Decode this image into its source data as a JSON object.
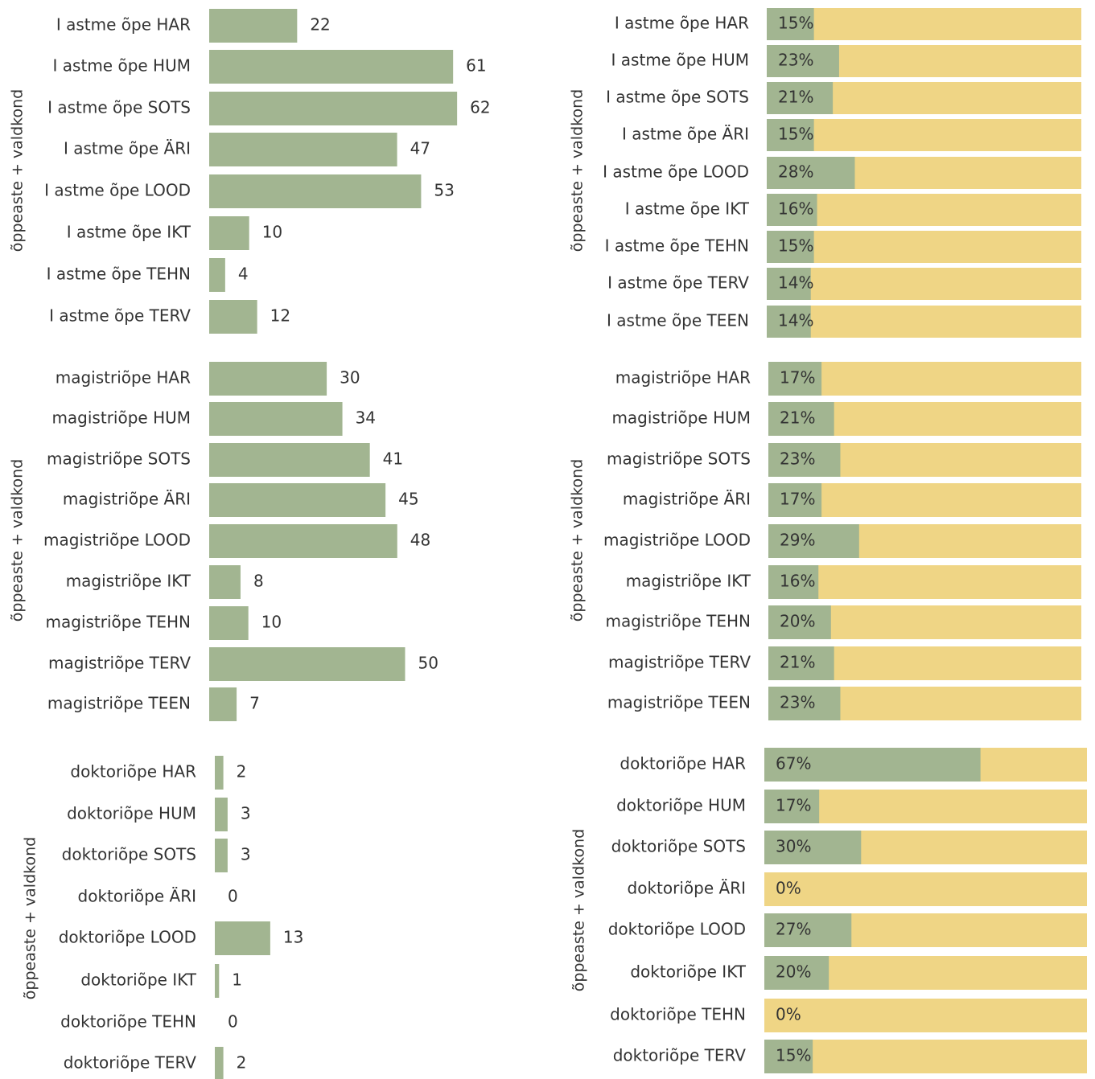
{
  "colors": {
    "bar": "#a2b591",
    "remainder": "#efd585",
    "text": "#333333"
  },
  "chart_data": [
    {
      "type": "bar",
      "orientation": "horizontal",
      "ylabel": "õppeaste + valdkond",
      "categories": [
        "I astme õpe HAR",
        "I astme õpe HUM",
        "I astme õpe SOTS",
        "I astme õpe ÄRI",
        "I astme õpe LOOD",
        "I astme õpe IKT",
        "I astme õpe TEHN",
        "I astme õpe TERV"
      ],
      "values": [
        22,
        61,
        62,
        47,
        53,
        10,
        4,
        12
      ]
    },
    {
      "type": "bar",
      "orientation": "horizontal",
      "ylabel": "õppeaste + valdkond",
      "categories": [
        "magistriõpe HAR",
        "magistriõpe HUM",
        "magistriõpe SOTS",
        "magistriõpe ÄRI",
        "magistriõpe LOOD",
        "magistriõpe IKT",
        "magistriõpe TEHN",
        "magistriõpe TERV",
        "magistriõpe TEEN"
      ],
      "values": [
        30,
        34,
        41,
        45,
        48,
        8,
        10,
        50,
        7
      ]
    },
    {
      "type": "bar",
      "orientation": "horizontal",
      "ylabel": "õppeaste + valdkond",
      "categories": [
        "doktoriõpe HAR",
        "doktoriõpe HUM",
        "doktoriõpe SOTS",
        "doktoriõpe ÄRI",
        "doktoriõpe LOOD",
        "doktoriõpe IKT",
        "doktoriõpe TEHN",
        "doktoriõpe TERV"
      ],
      "values": [
        2,
        3,
        3,
        0,
        13,
        1,
        0,
        2
      ]
    },
    {
      "type": "bar",
      "orientation": "horizontal",
      "stacked": "percent",
      "ylabel": "õppeaste + valdkond",
      "categories": [
        "I astme õpe HAR",
        "I astme õpe HUM",
        "I astme õpe SOTS",
        "I astme õpe ÄRI",
        "I astme õpe LOOD",
        "I astme õpe IKT",
        "I astme õpe TEHN",
        "I astme õpe TERV",
        "I astme õpe TEEN"
      ],
      "values": [
        15,
        23,
        21,
        15,
        28,
        16,
        15,
        14,
        14
      ],
      "labels": [
        "15%",
        "23%",
        "21%",
        "15%",
        "28%",
        "16%",
        "15%",
        "14%",
        "14%"
      ]
    },
    {
      "type": "bar",
      "orientation": "horizontal",
      "stacked": "percent",
      "ylabel": "õppeaste + valdkond",
      "categories": [
        "magistriõpe HAR",
        "magistriõpe HUM",
        "magistriõpe SOTS",
        "magistriõpe ÄRI",
        "magistriõpe LOOD",
        "magistriõpe IKT",
        "magistriõpe TEHN",
        "magistriõpe TERV",
        "magistriõpe TEEN"
      ],
      "values": [
        17,
        21,
        23,
        17,
        29,
        16,
        20,
        21,
        23
      ],
      "labels": [
        "17%",
        "21%",
        "23%",
        "17%",
        "29%",
        "16%",
        "20%",
        "21%",
        "23%"
      ]
    },
    {
      "type": "bar",
      "orientation": "horizontal",
      "stacked": "percent",
      "ylabel": "õppeaste + valdkond",
      "categories": [
        "doktoriõpe HAR",
        "doktoriõpe HUM",
        "doktoriõpe SOTS",
        "doktoriõpe ÄRI",
        "doktoriõpe LOOD",
        "doktoriõpe IKT",
        "doktoriõpe TEHN",
        "doktoriõpe TERV"
      ],
      "values": [
        67,
        17,
        30,
        0,
        27,
        20,
        0,
        15
      ],
      "labels": [
        "67%",
        "17%",
        "30%",
        "0%",
        "27%",
        "20%",
        "0%",
        "15%"
      ]
    }
  ]
}
